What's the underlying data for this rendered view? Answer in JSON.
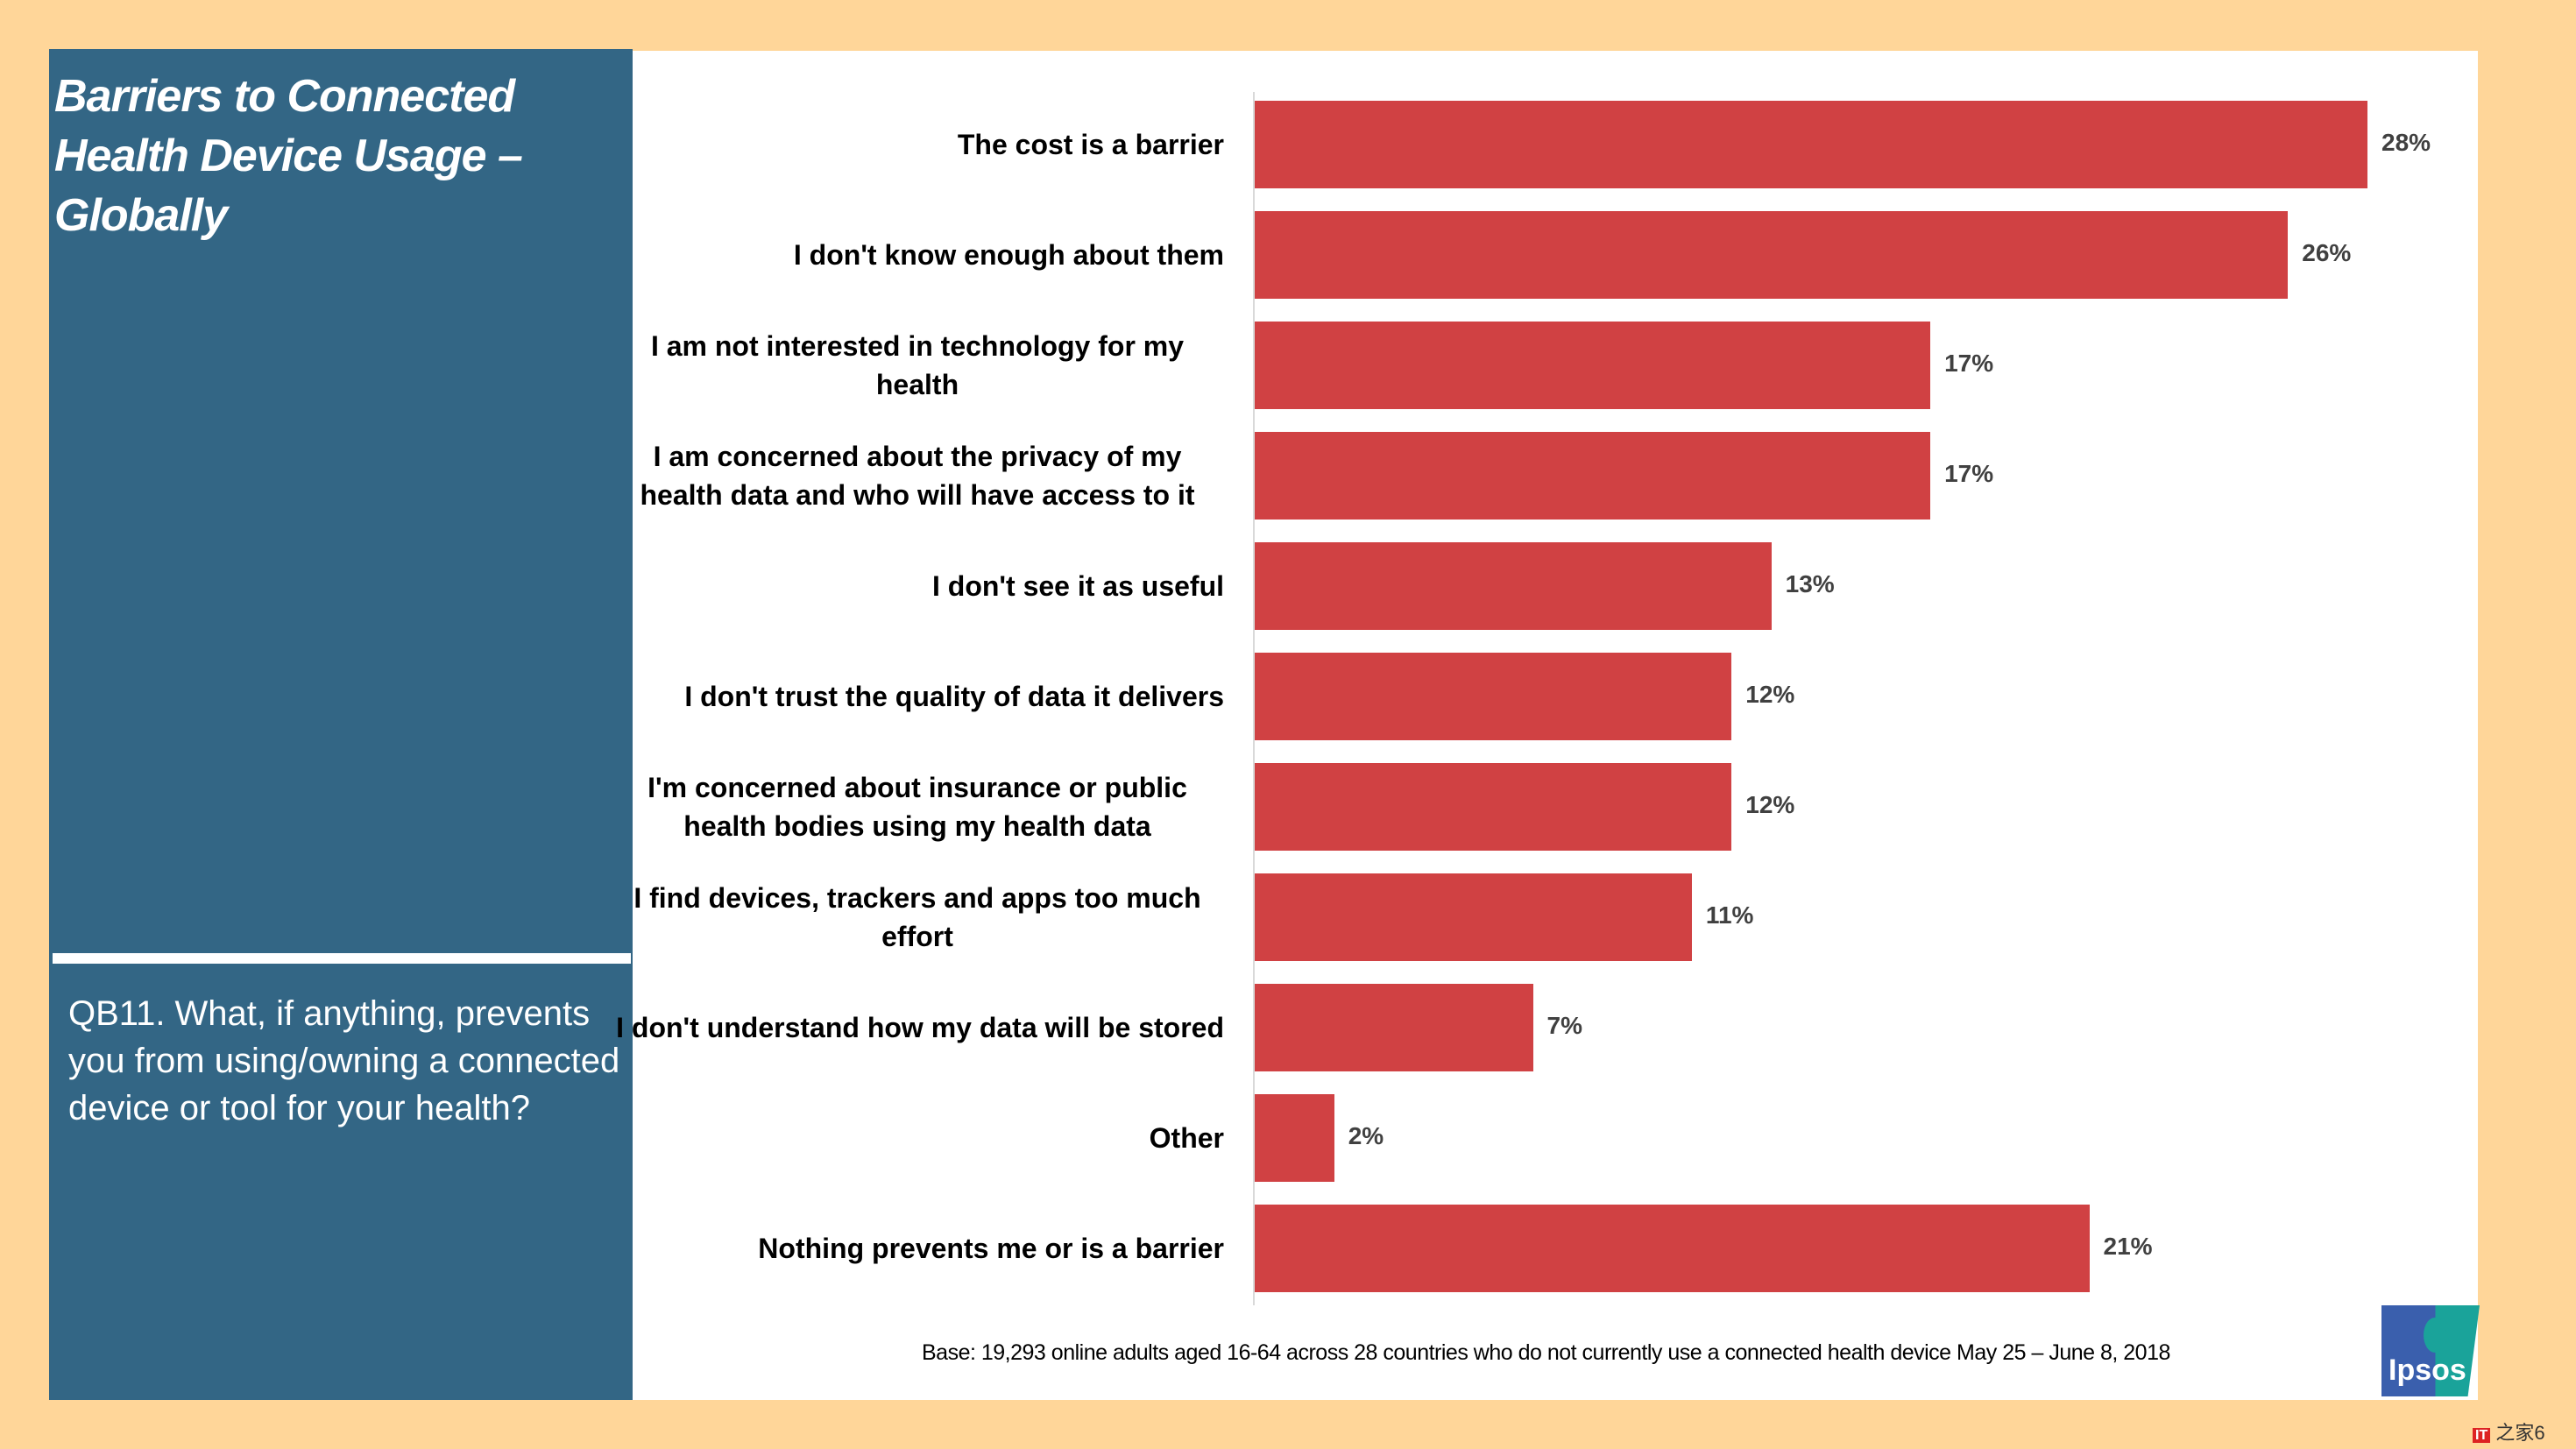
{
  "sidebar": {
    "title": "Barriers to Connected Health Device Usage – Globally",
    "question": "QB11. What, if anything, prevents you from using/owning a connected device or tool for your health?"
  },
  "footer": {
    "base": "Base: 19,293 online adults aged 16-64 across 28 countries who do not currently use a connected health device  May 25 – June 8, 2018",
    "logo": "Ipsos",
    "watermark": "IT之家6"
  },
  "colors": {
    "bar": "#D04143",
    "panel": "#336685",
    "background": "#FFD699"
  },
  "chart_data": {
    "type": "bar",
    "orientation": "horizontal",
    "xlim": [
      0,
      28
    ],
    "categories": [
      "The cost is a barrier",
      "I don't know enough about them",
      "I am not interested in technology for my health",
      "I am concerned about the privacy of my health data and who will have access to it",
      "I don't see it as useful",
      "I don't trust the quality of data it delivers",
      "I'm concerned about insurance or public health bodies using my health data",
      "I find devices, trackers and apps too much effort",
      "I don't understand how my data will be stored",
      "Other",
      "Nothing prevents me or is a barrier"
    ],
    "values": [
      28,
      26,
      17,
      17,
      13,
      12,
      12,
      11,
      7,
      2,
      21
    ],
    "labels": [
      "28%",
      "26%",
      "17%",
      "17%",
      "13%",
      "12%",
      "12%",
      "11%",
      "7%",
      "2%",
      "21%"
    ]
  }
}
